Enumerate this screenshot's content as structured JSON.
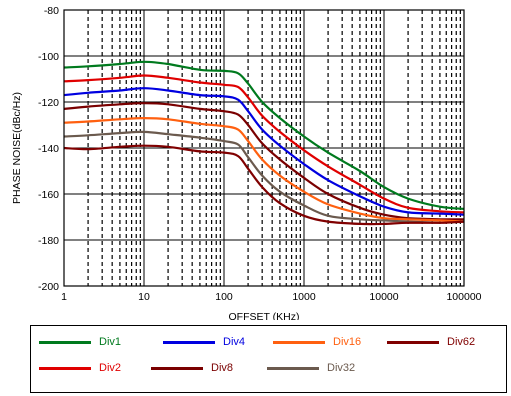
{
  "chart_data": {
    "type": "line",
    "title": "",
    "xlabel": "OFFSET (KHz)",
    "ylabel": "PHASE NOISE(dBc/Hz)",
    "x_scale": "log",
    "xlim": [
      1,
      100000
    ],
    "ylim": [
      -200,
      -80
    ],
    "x_ticks": [
      "1",
      "10",
      "100",
      "1000",
      "10000",
      "100000"
    ],
    "y_ticks": [
      "-80",
      "-100",
      "-120",
      "-140",
      "-160",
      "-180",
      "-200"
    ],
    "grid": "major solid, minor dashed",
    "legend_position": "bottom",
    "series": [
      {
        "name": "Div1",
        "color": "#007a1e",
        "x": [
          1,
          2,
          5,
          10,
          20,
          50,
          100,
          150,
          200,
          300,
          500,
          1000,
          2000,
          5000,
          10000,
          20000,
          50000,
          100000
        ],
        "y": [
          -105,
          -104.5,
          -103.5,
          -102.5,
          -103.5,
          -106,
          -106.5,
          -107.5,
          -112,
          -120,
          -127,
          -135,
          -142,
          -150,
          -157,
          -162,
          -165.5,
          -166.5
        ]
      },
      {
        "name": "Div2",
        "color": "#e00000",
        "x": [
          1,
          2,
          5,
          10,
          20,
          50,
          100,
          150,
          200,
          300,
          500,
          1000,
          2000,
          5000,
          10000,
          20000,
          50000,
          100000
        ],
        "y": [
          -111,
          -110.5,
          -109.5,
          -108.5,
          -109.5,
          -111.5,
          -112.5,
          -113.5,
          -118,
          -126,
          -133,
          -141,
          -148,
          -156,
          -162,
          -166,
          -167.5,
          -168
        ]
      },
      {
        "name": "Div4",
        "color": "#0000e0",
        "x": [
          1,
          2,
          5,
          10,
          20,
          50,
          100,
          150,
          200,
          300,
          500,
          1000,
          2000,
          5000,
          10000,
          20000,
          50000,
          100000
        ],
        "y": [
          -117,
          -116,
          -115,
          -114,
          -115,
          -117,
          -117.5,
          -119,
          -124,
          -132,
          -139,
          -147,
          -154,
          -161,
          -165.5,
          -168,
          -168.5,
          -169
        ]
      },
      {
        "name": "Div8",
        "color": "#7a0000",
        "x": [
          1,
          2,
          5,
          10,
          20,
          50,
          100,
          150,
          200,
          300,
          500,
          1000,
          2000,
          5000,
          10000,
          20000,
          50000,
          100000
        ],
        "y": [
          -123,
          -122,
          -121,
          -120.5,
          -121,
          -123,
          -124,
          -125.5,
          -130,
          -138,
          -145,
          -153,
          -160,
          -166,
          -169,
          -170.5,
          -171,
          -171
        ]
      },
      {
        "name": "Div16",
        "color": "#ff6010",
        "x": [
          1,
          2,
          5,
          10,
          20,
          50,
          100,
          150,
          200,
          300,
          500,
          1000,
          2000,
          5000,
          10000,
          20000,
          50000,
          100000
        ],
        "y": [
          -129,
          -128.5,
          -127.5,
          -127,
          -127.5,
          -129.5,
          -130.5,
          -132,
          -137,
          -145,
          -152,
          -159,
          -164.5,
          -168.5,
          -170.5,
          -171,
          -171.5,
          -172
        ]
      },
      {
        "name": "Div32",
        "color": "#6b5a4e",
        "x": [
          1,
          2,
          5,
          10,
          20,
          50,
          100,
          150,
          200,
          300,
          500,
          1000,
          2000,
          5000,
          10000,
          20000,
          50000
        ],
        "y": [
          -135,
          -134.5,
          -133.5,
          -133,
          -134,
          -135.5,
          -137,
          -138.5,
          -144,
          -152,
          -159,
          -165,
          -169.5,
          -171,
          -171.5,
          -172,
          -172.5
        ]
      },
      {
        "name": "Div62",
        "color": "#800000",
        "x": [
          1,
          2,
          5,
          10,
          20,
          50,
          100,
          150,
          200,
          300,
          500,
          1000,
          2000,
          5000,
          10000,
          20000,
          50000,
          100000
        ],
        "y": [
          -140,
          -140.5,
          -139.5,
          -139,
          -139.5,
          -141.5,
          -142,
          -143.5,
          -149,
          -157,
          -164,
          -169.5,
          -172,
          -173,
          -173,
          -172.5,
          -172.5,
          -172
        ]
      }
    ]
  },
  "legend": {
    "row1": [
      {
        "label": "Div1",
        "color": "#007a1e"
      },
      {
        "label": "Div4",
        "color": "#0000e0"
      },
      {
        "label": "Div16",
        "color": "#ff6010"
      },
      {
        "label": "Div62",
        "color": "#800000"
      }
    ],
    "row2": [
      {
        "label": "Div2",
        "color": "#e00000"
      },
      {
        "label": "Div8",
        "color": "#7a0000"
      },
      {
        "label": "Div32",
        "color": "#6b5a4e"
      }
    ]
  }
}
